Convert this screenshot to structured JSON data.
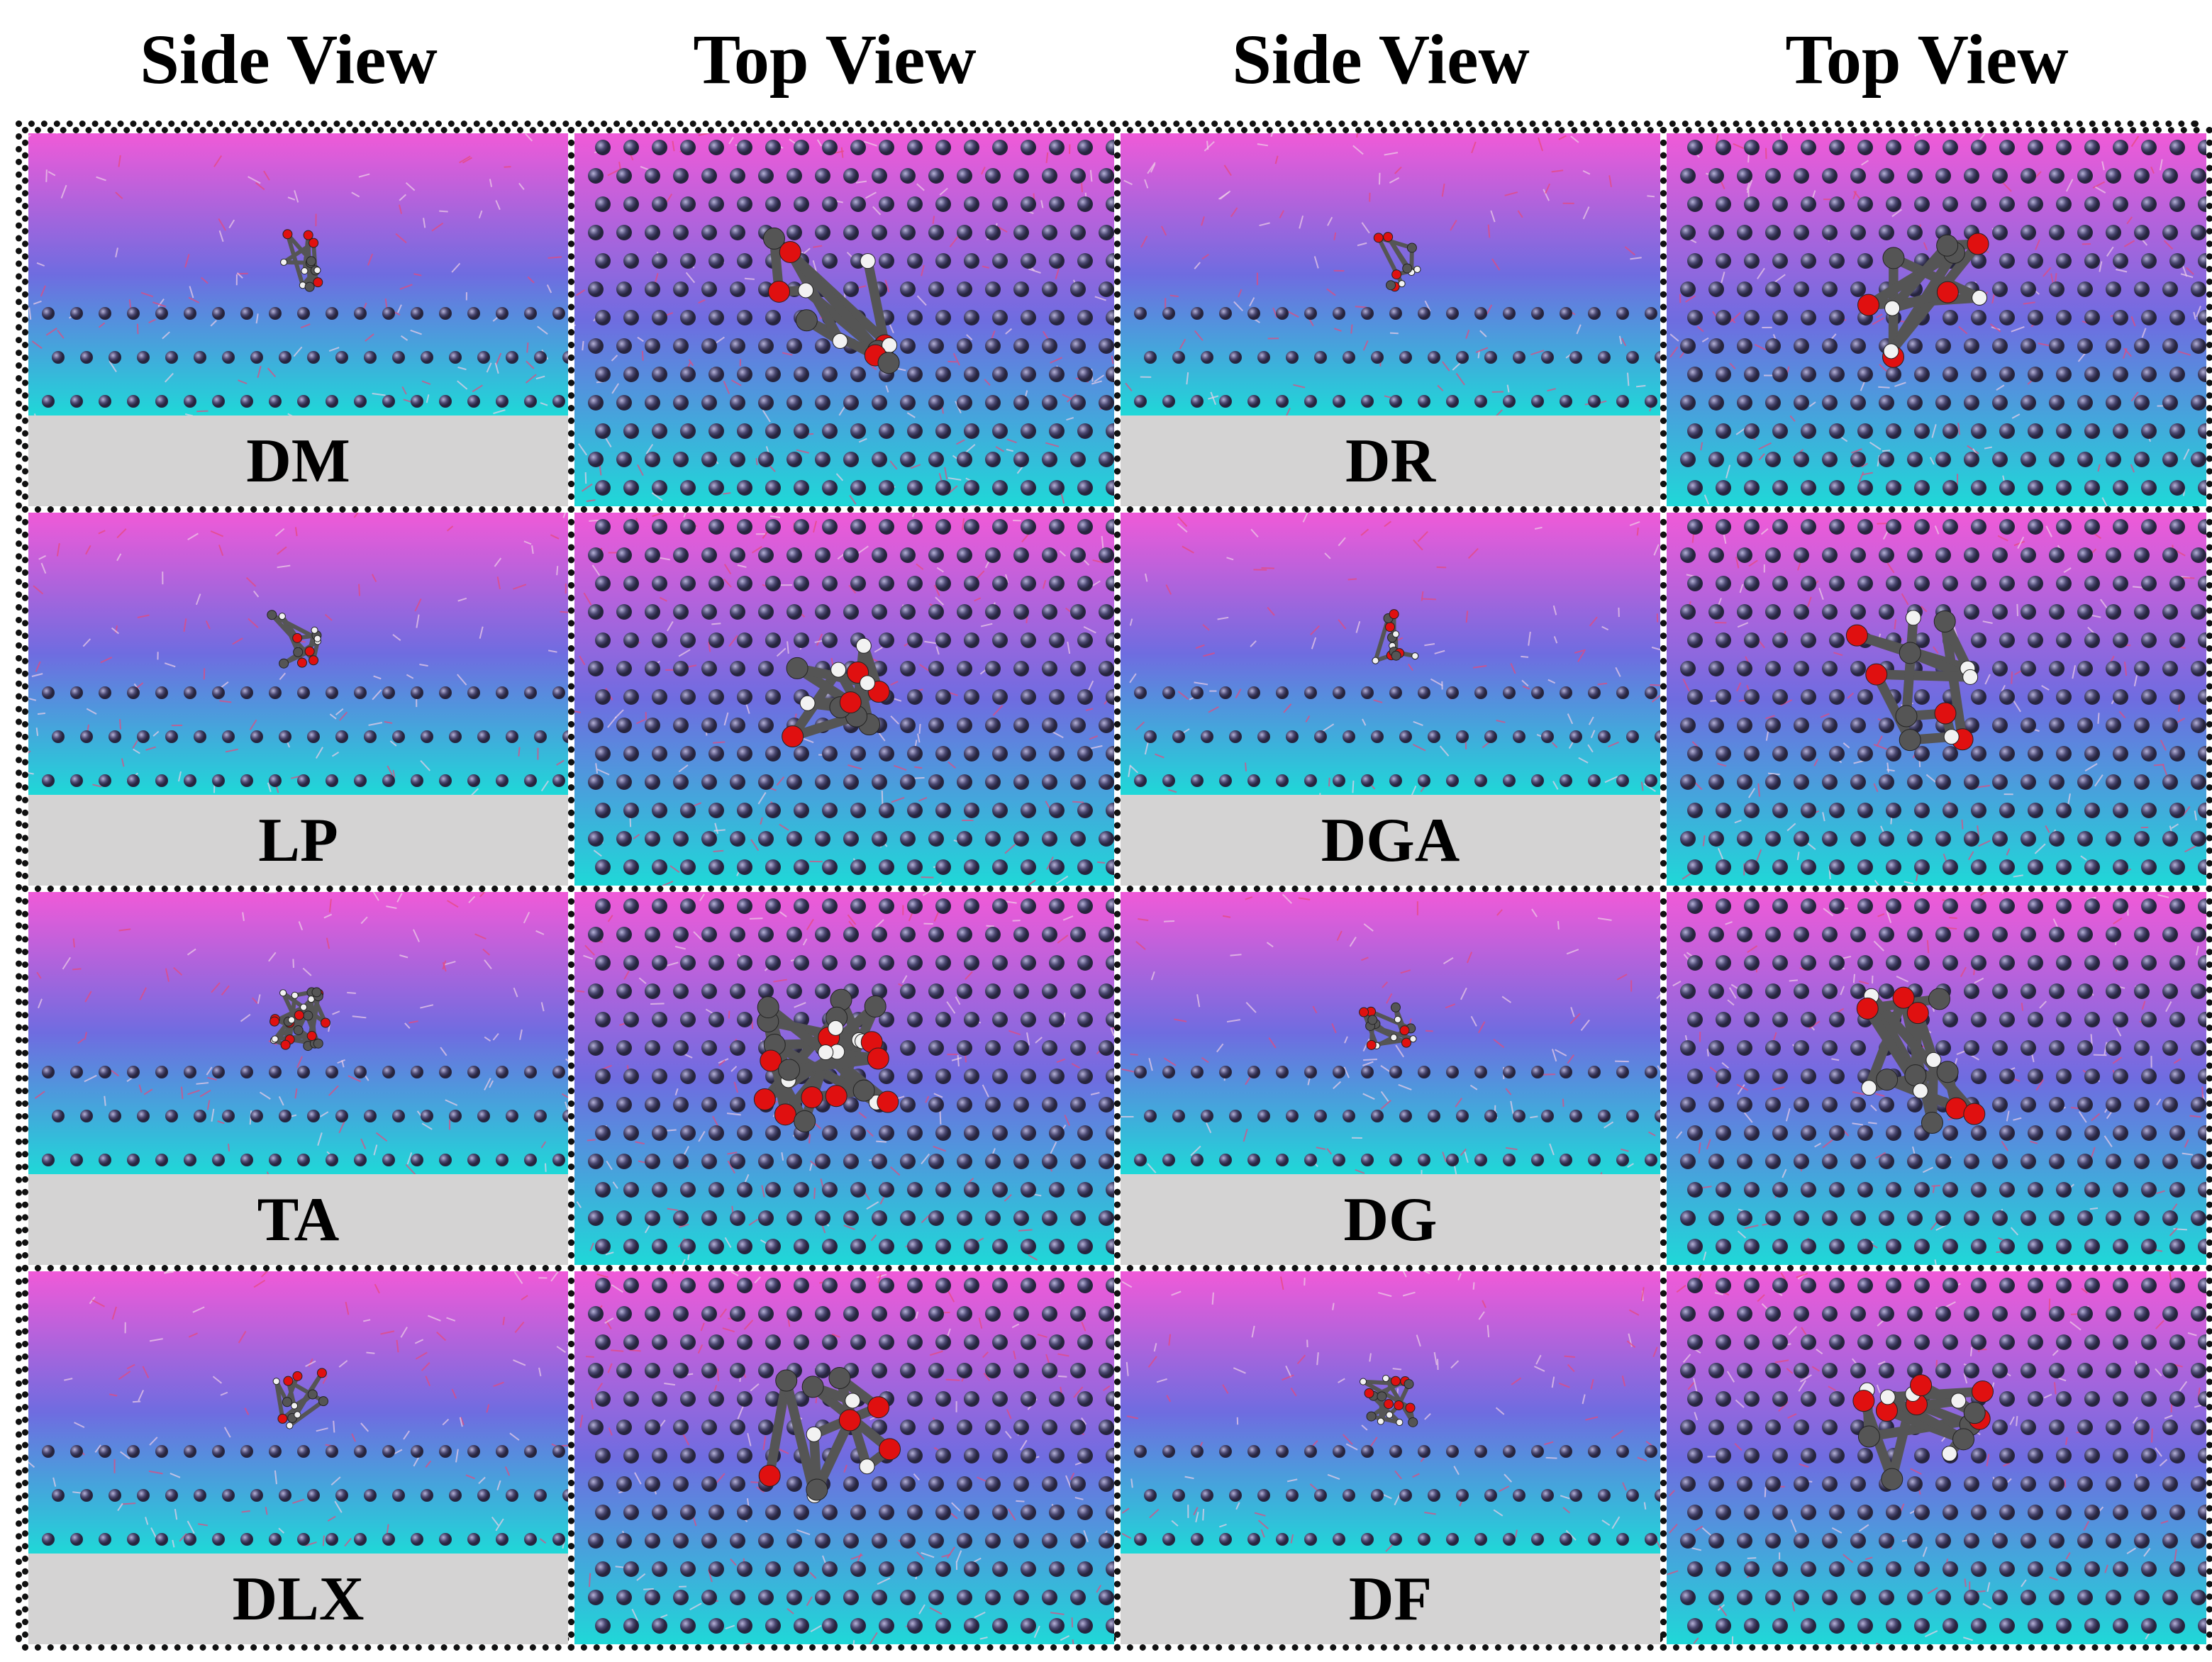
{
  "headers": [
    "Side View",
    "Top View",
    "Side View",
    "Top View"
  ],
  "panels": [
    {
      "label": "DM"
    },
    {
      "label": "DR"
    },
    {
      "label": "LP"
    },
    {
      "label": "DGA"
    },
    {
      "label": "TA"
    },
    {
      "label": "DG"
    },
    {
      "label": "DLX"
    },
    {
      "label": "DF"
    }
  ],
  "colors": {
    "gradient_top": "#f05ad8",
    "gradient_mid": "#6f6ce0",
    "gradient_bottom": "#1fd8d8",
    "atom": "#4a4770",
    "label_bg": "#d4d3d3",
    "oxygen": "#e01010",
    "carbon": "#555555",
    "hydrogen": "#f2f2f2"
  }
}
